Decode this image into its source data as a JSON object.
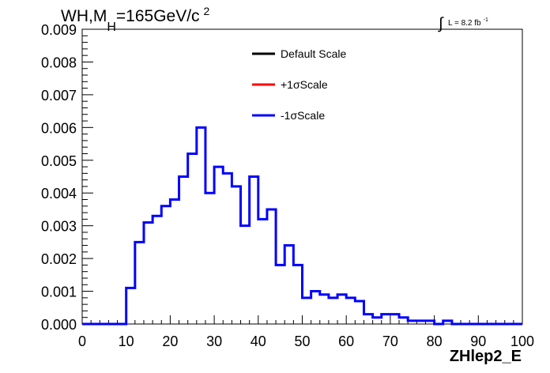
{
  "chart_data": {
    "type": "line",
    "title": {
      "main": "WH,M",
      "sub": "H",
      "rest": "=165GeV/c",
      "sup": "2"
    },
    "lumi": {
      "integral": "∫",
      "text": "L = 8.2 fb",
      "sup": "-1"
    },
    "xlabel": "ZHlep2_E",
    "ylabel": "",
    "xlim": [
      0,
      100
    ],
    "ylim": [
      0,
      0.009
    ],
    "xticks": [
      "0",
      "10",
      "20",
      "30",
      "40",
      "50",
      "60",
      "70",
      "80",
      "90",
      "100"
    ],
    "yticks": [
      "0.000",
      "0.001",
      "0.002",
      "0.003",
      "0.004",
      "0.005",
      "0.006",
      "0.007",
      "0.008",
      "0.009"
    ],
    "bin_width": 2,
    "legend_position": "top-center",
    "legend": [
      {
        "name": "Default Scale",
        "color": "#000000"
      },
      {
        "name": "+1σScale",
        "color": "#ff0000"
      },
      {
        "name": "-1σScale",
        "color": "#0000ff"
      }
    ],
    "series": [
      {
        "name": "-1σScale",
        "color": "#0000ff",
        "x": [
          1,
          3,
          5,
          7,
          9,
          11,
          13,
          15,
          17,
          19,
          21,
          23,
          25,
          27,
          29,
          31,
          33,
          35,
          37,
          39,
          41,
          43,
          45,
          47,
          49,
          51,
          53,
          55,
          57,
          59,
          61,
          63,
          65,
          67,
          69,
          71,
          73,
          75,
          77,
          79,
          81,
          83,
          85,
          87,
          89,
          91,
          93,
          95,
          97,
          99
        ],
        "values": [
          0,
          0,
          0,
          0,
          0,
          0.0011,
          0.0025,
          0.0031,
          0.0033,
          0.0036,
          0.0038,
          0.0045,
          0.0052,
          0.006,
          0.004,
          0.0048,
          0.0046,
          0.0042,
          0.003,
          0.0045,
          0.0032,
          0.0035,
          0.0018,
          0.0024,
          0.0018,
          0.0008,
          0.001,
          0.0009,
          0.0008,
          0.0009,
          0.0008,
          0.0007,
          0.0003,
          0.0002,
          0.0003,
          0.0003,
          0.0002,
          0.0001,
          0.0001,
          0.0001,
          0,
          0.0001,
          0,
          0,
          0,
          0,
          0,
          0,
          0,
          0
        ]
      }
    ]
  }
}
